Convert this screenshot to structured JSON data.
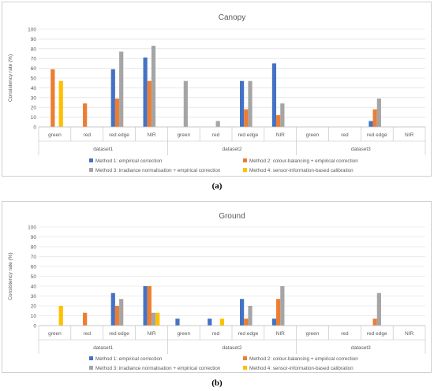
{
  "panel_labels": [
    "(a)",
    "(b)"
  ],
  "legend_labels": [
    "Method 1: empirical correction",
    "Method 2: colour-balancing + empirical correction",
    "Method 3: irradiance normalisation + empirical correction",
    "Method 4: sensor-information-based calibration"
  ],
  "colors": {
    "Method 1: empirical correction": "#4472c4",
    "Method 2: colour-balancing + empirical correction": "#ed7d31",
    "Method 3: irradiance normalisation + empirical correction": "#a5a5a5",
    "Method 4: sensor-information-based calibration": "#ffc000"
  },
  "chart_data": [
    {
      "type": "bar",
      "title": "Canopy",
      "ylabel": "Consistency rate (%)",
      "xlabel": "",
      "ylim": [
        0,
        100
      ],
      "yticks": [
        0,
        10,
        20,
        30,
        40,
        50,
        60,
        70,
        80,
        90,
        100
      ],
      "grid": true,
      "legend": "bottom",
      "groups": [
        "dataset1",
        "dataset2",
        "dataset3"
      ],
      "categories": [
        "green",
        "red",
        "red edge",
        "NIR",
        "green",
        "red",
        "red edge",
        "NIR",
        "green",
        "red",
        "red edge",
        "NIR"
      ],
      "series": [
        {
          "name": "Method 1: empirical correction",
          "values": [
            0,
            0,
            59,
            71,
            0,
            0,
            47,
            65,
            0,
            0,
            6,
            0
          ]
        },
        {
          "name": "Method 2: colour-balancing + empirical correction",
          "values": [
            59,
            24,
            29,
            47,
            0,
            0,
            18,
            12,
            0,
            0,
            18,
            0
          ]
        },
        {
          "name": "Method 3: irradiance normalisation + empirical correction",
          "values": [
            0,
            0,
            77,
            83,
            47,
            6,
            47,
            24,
            0,
            0,
            29,
            0
          ]
        },
        {
          "name": "Method 4: sensor-information-based calibration",
          "values": [
            47,
            0,
            0,
            0,
            0,
            0,
            0,
            0,
            0,
            0,
            0,
            0
          ]
        }
      ]
    },
    {
      "type": "bar",
      "title": "Ground",
      "ylabel": "Consistency rate (%)",
      "xlabel": "",
      "ylim": [
        0,
        100
      ],
      "yticks": [
        0,
        10,
        20,
        30,
        40,
        50,
        60,
        70,
        80,
        90,
        100
      ],
      "grid": true,
      "legend": "bottom",
      "groups": [
        "dataset1",
        "dataset2",
        "dataset3"
      ],
      "categories": [
        "green",
        "red",
        "red edge",
        "NIR",
        "green",
        "red",
        "red edge",
        "NIR",
        "green",
        "red",
        "red edge",
        "NIR"
      ],
      "series": [
        {
          "name": "Method 1: empirical correction",
          "values": [
            0,
            0,
            33,
            40,
            7,
            7,
            27,
            7,
            0,
            0,
            0,
            0
          ]
        },
        {
          "name": "Method 2: colour-balancing + empirical correction",
          "values": [
            0,
            13,
            20,
            40,
            0,
            0,
            7,
            27,
            0,
            0,
            7,
            0
          ]
        },
        {
          "name": "Method 3: irradiance normalisation + empirical correction",
          "values": [
            0,
            0,
            27,
            13,
            0,
            0,
            20,
            40,
            0,
            0,
            33,
            0
          ]
        },
        {
          "name": "Method 4: sensor-information-based calibration",
          "values": [
            20,
            0,
            0,
            13,
            0,
            7,
            0,
            0,
            0,
            0,
            0,
            0
          ]
        }
      ]
    }
  ]
}
